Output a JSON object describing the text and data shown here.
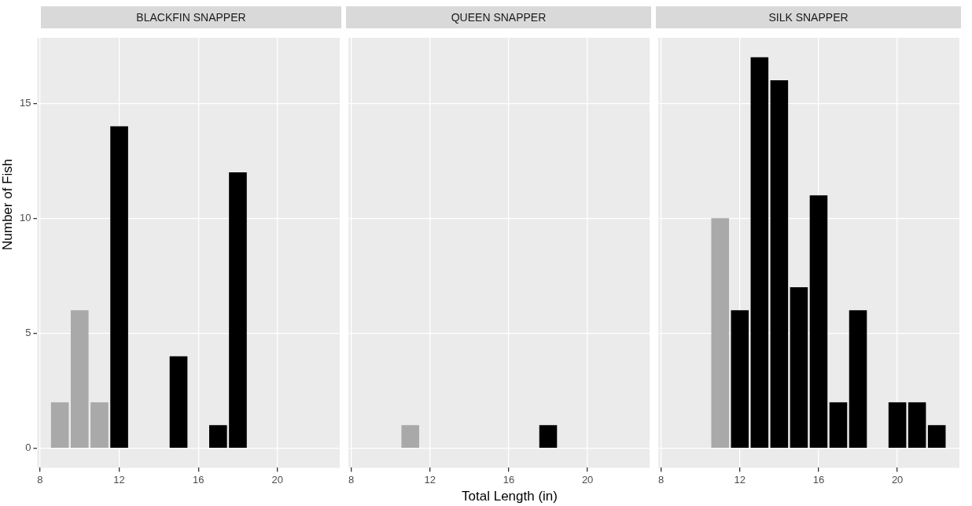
{
  "chart_data": [
    {
      "type": "bar",
      "title": "BLACKFIN SNAPPER",
      "ylabel": "Number of Fish",
      "x": [
        9,
        10,
        11,
        12,
        15,
        17,
        18
      ],
      "values": [
        2,
        6,
        2,
        14,
        4,
        1,
        12
      ],
      "colors": [
        "#a9a9a9",
        "#a9a9a9",
        "#a9a9a9",
        "#000000",
        "#000000",
        "#000000",
        "#000000"
      ],
      "xlim": [
        7.86,
        23.15
      ],
      "xticks": [
        8,
        12,
        16,
        20
      ],
      "ylim": [
        -0.85,
        17.85
      ],
      "yticks": [
        0,
        5,
        10,
        15
      ],
      "grid": true
    },
    {
      "type": "bar",
      "title": "QUEEN SNAPPER",
      "xlabel": "Total Length (in)",
      "x": [
        11,
        18
      ],
      "values": [
        1,
        1
      ],
      "colors": [
        "#a9a9a9",
        "#000000"
      ],
      "xlim": [
        7.86,
        23.15
      ],
      "xticks": [
        8,
        12,
        16,
        20
      ],
      "ylim": [
        -0.85,
        17.85
      ],
      "yticks": [
        0,
        5,
        10,
        15
      ],
      "grid": true,
      "tick_labels": "x"
    },
    {
      "type": "bar",
      "title": "SILK SNAPPER",
      "x": [
        11,
        12,
        13,
        14,
        15,
        16,
        17,
        18,
        20,
        21,
        22
      ],
      "values": [
        10,
        6,
        17,
        16,
        7,
        11,
        2,
        6,
        2,
        2,
        1
      ],
      "colors": [
        "#a9a9a9",
        "#000000",
        "#000000",
        "#000000",
        "#000000",
        "#000000",
        "#000000",
        "#000000",
        "#000000",
        "#000000",
        "#000000"
      ],
      "xlim": [
        7.86,
        23.15
      ],
      "xticks": [
        8,
        12,
        16,
        20
      ],
      "ylim": [
        -0.85,
        17.85
      ],
      "yticks": [
        0,
        5,
        10,
        15
      ],
      "grid": true,
      "tick_labels": "x"
    }
  ]
}
